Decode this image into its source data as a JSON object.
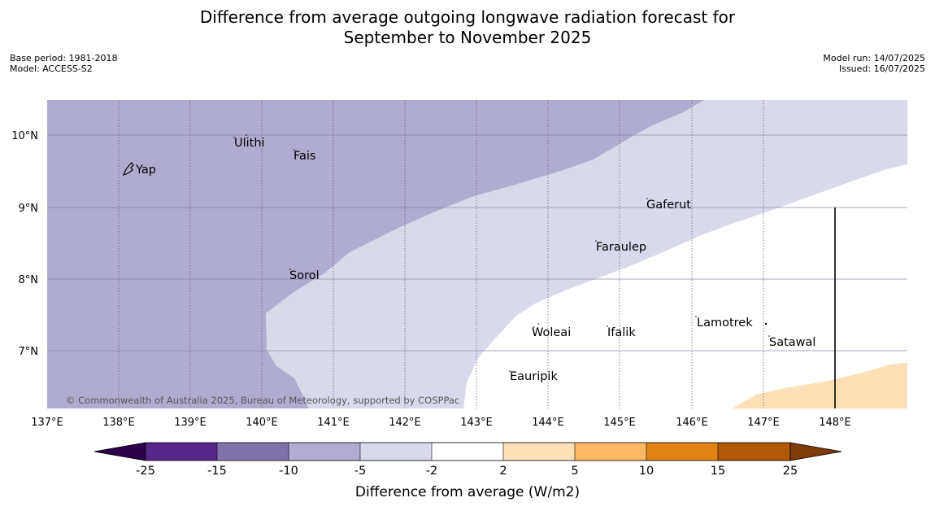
{
  "title_line1": "Difference from average outgoing longwave radiation forecast for",
  "title_line2": "September to November 2025",
  "base_period": "Base period: 1981-2018",
  "model": "Model: ACCESS-S2",
  "model_run": "Model run: 14/07/2025",
  "issued": "Issued: 16/07/2025",
  "copyright": "© Commonwealth of Australia 2025, Bureau of Meteorology, supported by COSPPac",
  "lon_ticks": [
    "137°E",
    "138°E",
    "139°E",
    "140°E",
    "141°E",
    "142°E",
    "143°E",
    "144°E",
    "145°E",
    "146°E",
    "147°E",
    "148°E"
  ],
  "lat_ticks": [
    "10°N",
    "9°N",
    "8°N",
    "7°N"
  ],
  "places": [
    {
      "name": "Ulithi"
    },
    {
      "name": "Fais"
    },
    {
      "name": "Yap"
    },
    {
      "name": "Gaferut"
    },
    {
      "name": "Faraulep"
    },
    {
      "name": "Sorol"
    },
    {
      "name": "Lamotrek"
    },
    {
      "name": "Woleai"
    },
    {
      "name": "Ifalik"
    },
    {
      "name": "Satawal"
    },
    {
      "name": "Eauripik"
    }
  ],
  "colorbar_ticks": [
    "-25",
    "-15",
    "-10",
    "-5",
    "-2",
    "2",
    "5",
    "10",
    "15",
    "25"
  ],
  "colorbar_colors": [
    "#2d004b",
    "#542788",
    "#8073ac",
    "#b2abd2",
    "#d8daeb",
    "#ffffff",
    "#fee0b6",
    "#fdb863",
    "#e08214",
    "#b35806",
    "#7f3b08"
  ],
  "colorbar_label": "Difference from average (W/m2)"
}
